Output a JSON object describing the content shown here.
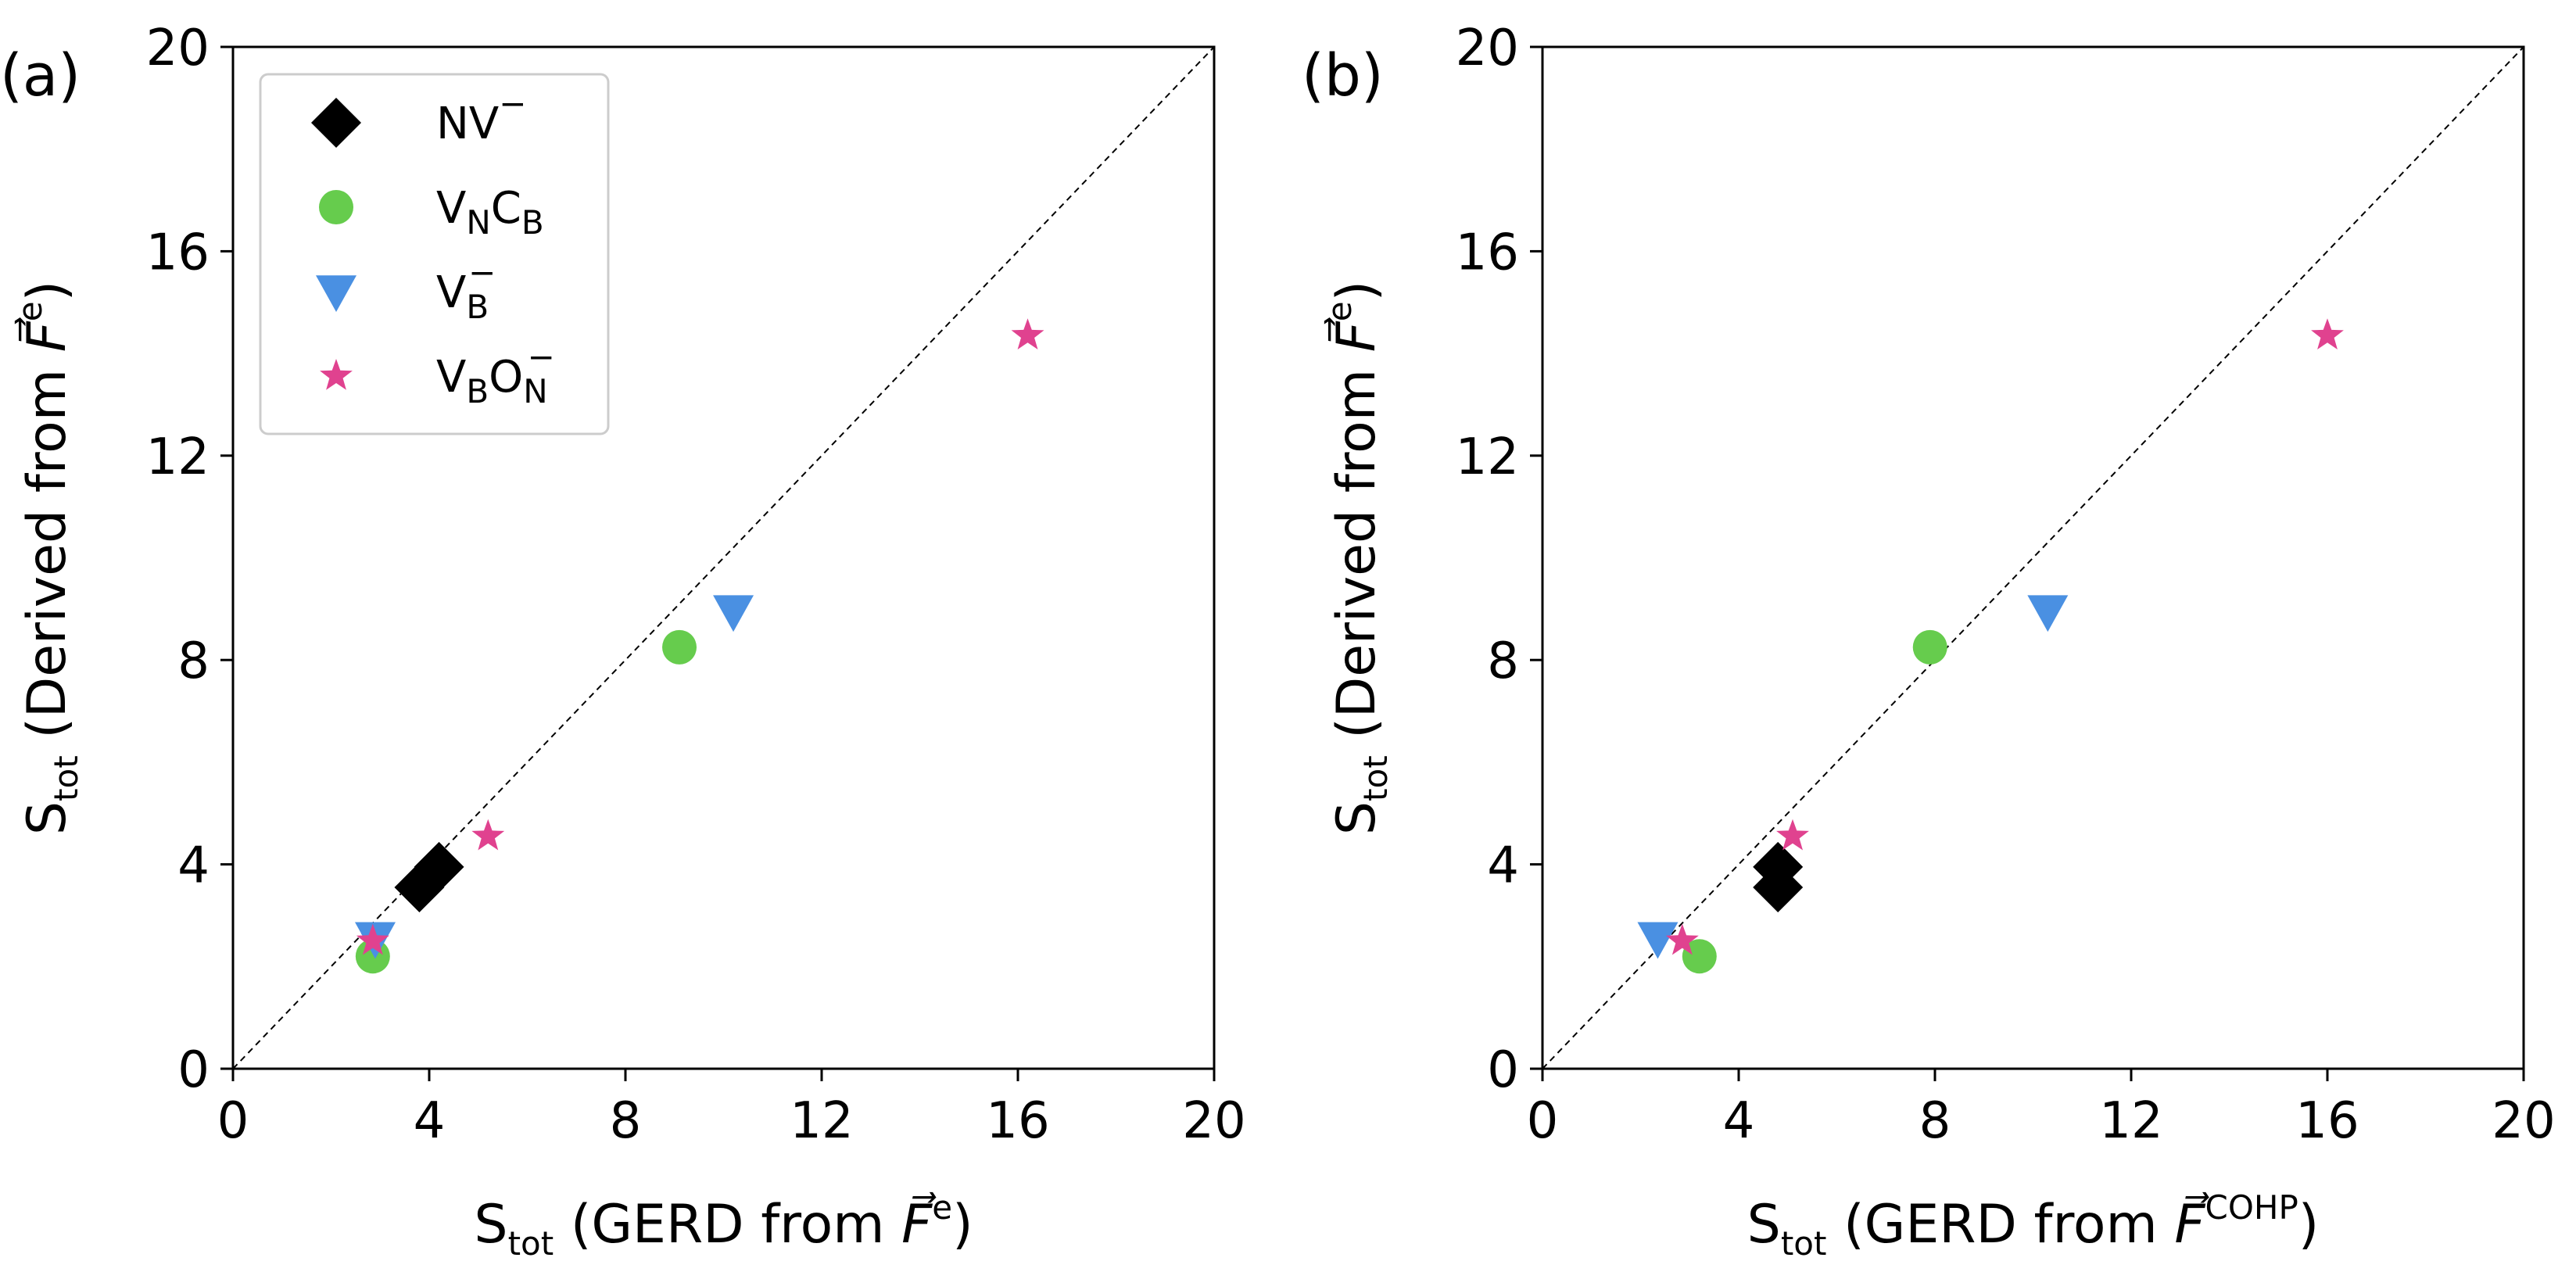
{
  "colors": {
    "NV": "#000000",
    "VNCB": "#66cc4d",
    "VB": "#4a90e2",
    "VBON": "#e0428f"
  },
  "legend": {
    "entries": [
      {
        "key": "NV",
        "base": "NV",
        "sub": "",
        "sup": "−",
        "marker": "diamond"
      },
      {
        "key": "VNCB",
        "base": "V",
        "sub": "N",
        "base2": "C",
        "sub2": "B",
        "marker": "circle"
      },
      {
        "key": "VB",
        "base": "V",
        "sub": "B",
        "sup": "−",
        "marker": "triangle-down"
      },
      {
        "key": "VBON",
        "base": "V",
        "sub": "B",
        "base2": "O",
        "sub2": "N",
        "sup2": "−",
        "marker": "star"
      }
    ]
  },
  "chart_data": [
    {
      "type": "scatter",
      "panel_label": "(a)",
      "xlabel": {
        "main": "S",
        "sub": "tot",
        "rest": " (GERD from ",
        "vec": "F",
        "sup": "e",
        "close": ")"
      },
      "ylabel": {
        "main": "S",
        "sub": "tot",
        "rest": " (Derived from ",
        "vec": "F",
        "sup": "e",
        "close": ")"
      },
      "xlim": [
        0,
        20
      ],
      "ylim": [
        0,
        20
      ],
      "xticks": [
        "0",
        "4",
        "8",
        "12",
        "16",
        "20"
      ],
      "yticks": [
        "0",
        "4",
        "8",
        "12",
        "16",
        "20"
      ],
      "diagonal": true,
      "series": [
        {
          "key": "NV",
          "points": [
            [
              3.8,
              3.55
            ],
            [
              4.2,
              3.95
            ]
          ]
        },
        {
          "key": "VNCB",
          "points": [
            [
              2.85,
              2.2
            ],
            [
              9.1,
              8.25
            ]
          ]
        },
        {
          "key": "VB",
          "points": [
            [
              2.9,
              2.55
            ],
            [
              10.2,
              8.95
            ]
          ]
        },
        {
          "key": "VBON",
          "points": [
            [
              2.85,
              2.5
            ],
            [
              5.2,
              4.55
            ],
            [
              16.2,
              14.35
            ]
          ]
        }
      ]
    },
    {
      "type": "scatter",
      "panel_label": "(b)",
      "xlabel": {
        "main": "S",
        "sub": "tot",
        "rest": " (GERD from ",
        "vec": "F",
        "sup": "COHP",
        "close": ")"
      },
      "ylabel": {
        "main": "S",
        "sub": "tot",
        "rest": " (Derived from ",
        "vec": "F",
        "sup": "e",
        "close": ")"
      },
      "xlim": [
        0,
        20
      ],
      "ylim": [
        0,
        20
      ],
      "xticks": [
        "0",
        "4",
        "8",
        "12",
        "16",
        "20"
      ],
      "yticks": [
        "0",
        "4",
        "8",
        "12",
        "16",
        "20"
      ],
      "diagonal": true,
      "series": [
        {
          "key": "NV",
          "points": [
            [
              4.8,
              3.55
            ],
            [
              4.8,
              3.95
            ]
          ]
        },
        {
          "key": "VNCB",
          "points": [
            [
              3.2,
              2.2
            ],
            [
              7.9,
              8.25
            ]
          ]
        },
        {
          "key": "VB",
          "points": [
            [
              2.35,
              2.55
            ],
            [
              10.3,
              8.95
            ]
          ]
        },
        {
          "key": "VBON",
          "points": [
            [
              2.85,
              2.5
            ],
            [
              5.1,
              4.55
            ],
            [
              16.0,
              14.35
            ]
          ]
        }
      ]
    }
  ]
}
